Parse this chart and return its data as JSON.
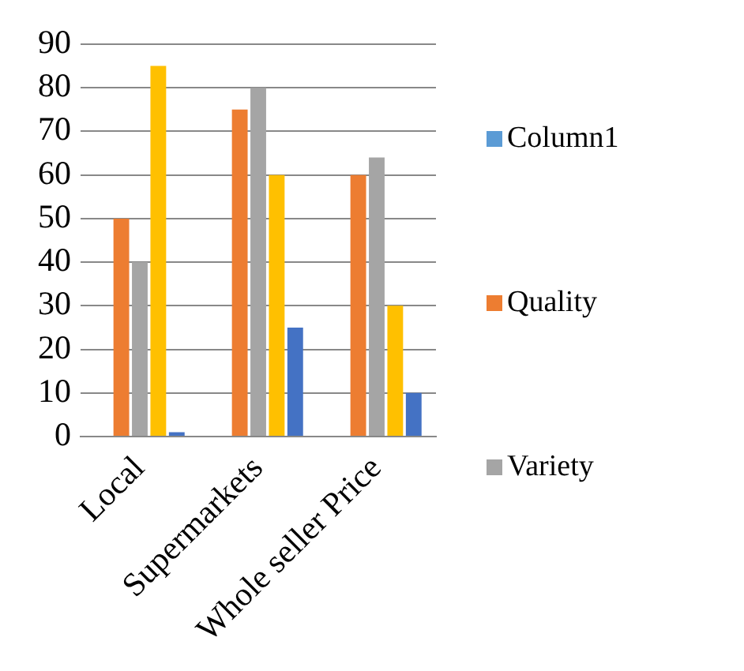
{
  "chart_data": {
    "type": "bar",
    "categories": [
      "Local",
      "Supermarkets",
      "Whole seller Price"
    ],
    "series": [
      {
        "name": "Column1",
        "color": "#5b9bd5",
        "values": [
          null,
          null,
          null
        ]
      },
      {
        "name": "Quality",
        "color": "#ed7d31",
        "values": [
          50,
          75,
          60
        ]
      },
      {
        "name": "Variety",
        "color": "#a5a5a5",
        "values": [
          40,
          80,
          64
        ]
      },
      {
        "color": "#ffc000",
        "values": [
          85,
          60,
          30
        ]
      },
      {
        "color": "#4472c4",
        "values": [
          1,
          25,
          10
        ]
      }
    ],
    "ylim": [
      0,
      90
    ],
    "yticks": [
      0,
      10,
      20,
      30,
      40,
      50,
      60,
      70,
      80,
      90
    ],
    "grid": "y",
    "legend": "right"
  }
}
